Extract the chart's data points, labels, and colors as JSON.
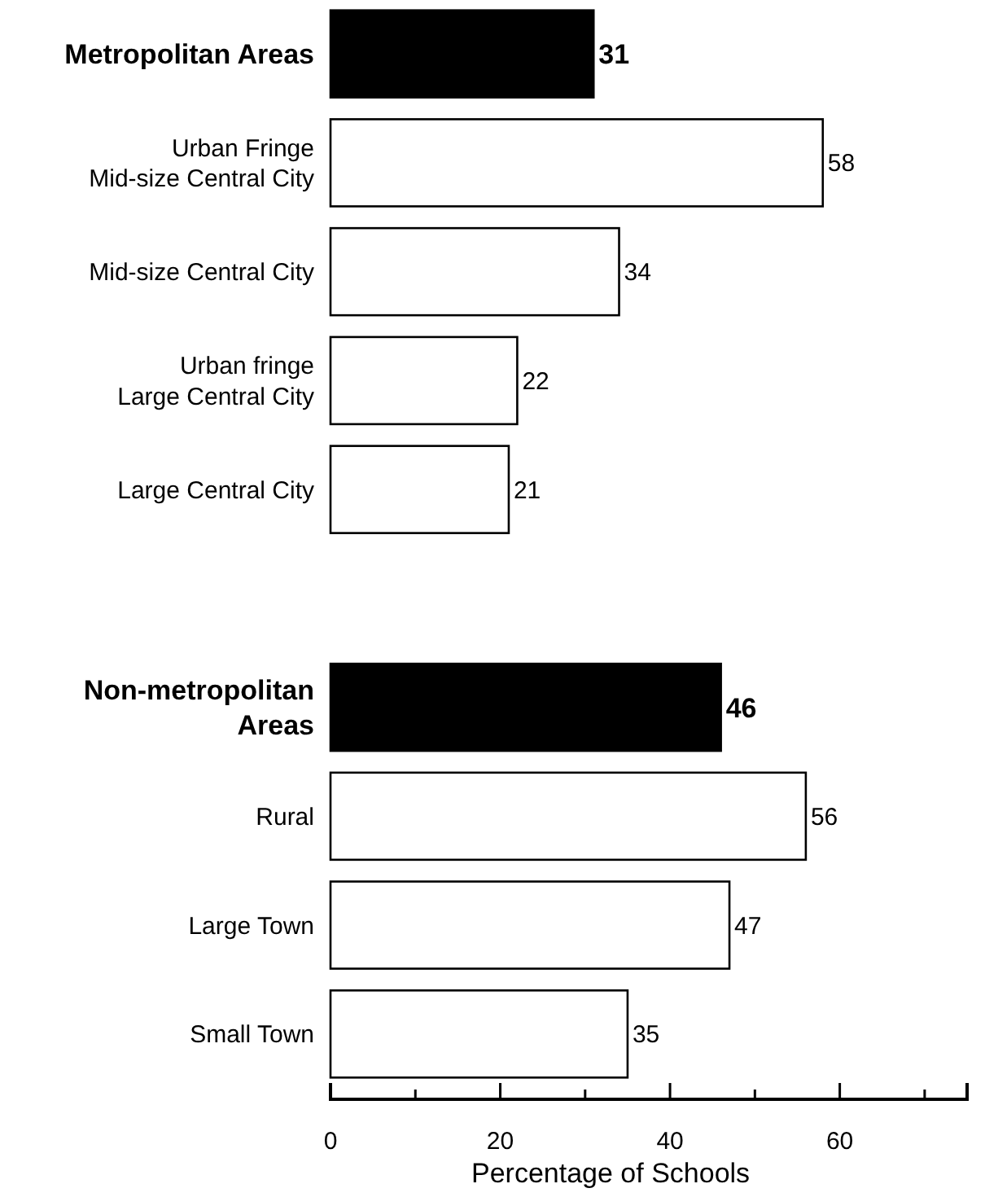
{
  "chart_data": {
    "type": "bar",
    "orientation": "horizontal",
    "xlabel": "Percentage of Schools",
    "categories": [
      "Metropolitan Areas",
      "Urban Fringe\nMid-size Central City",
      "Mid-size Central City",
      "Urban fringe\nLarge Central City",
      "Large Central City",
      null,
      "Non-metropolitan\nAreas",
      "Rural",
      "Large Town",
      "Small Town"
    ],
    "values": [
      31,
      58,
      34,
      22,
      21,
      null,
      46,
      56,
      47,
      35
    ],
    "colors": [
      "#000000",
      "#ffffff",
      "#ffffff",
      "#ffffff",
      "#ffffff",
      null,
      "#000000",
      "#ffffff",
      "#ffffff",
      "#ffffff"
    ],
    "data_labels": true,
    "grid": false,
    "xlim": [
      0,
      75
    ],
    "xticks": [
      0,
      {
        "value": 10,
        "label": null
      },
      20,
      {
        "value": 30,
        "label": null
      },
      40,
      {
        "value": 50,
        "label": null
      },
      60,
      {
        "value": 70,
        "label": null
      }
    ]
  }
}
